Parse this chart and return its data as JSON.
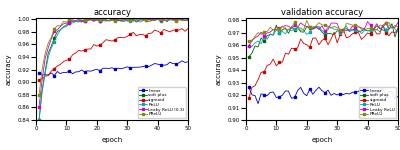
{
  "title1": "accuracy",
  "title2": "validation accuracy",
  "xlabel": "epoch",
  "ylabel": "accuracy",
  "epochs": 50,
  "legend1": [
    "linear",
    "soft plus",
    "sigmoid",
    "ReLU",
    "Leaky ReLU (0.3)",
    "PReLU"
  ],
  "legend2": [
    "linear",
    "soft plus",
    "sigmoid",
    "ReLU",
    "Leaky ReLU",
    "PReLU"
  ],
  "colors": [
    "#0000cc",
    "#006600",
    "#cc0000",
    "#00aaaa",
    "#cc00cc",
    "#888800"
  ],
  "ylim1": [
    0.84,
    1.002
  ],
  "ylim2": [
    0.9,
    0.982
  ],
  "yticks1": [
    0.84,
    0.86,
    0.88,
    0.9,
    0.92,
    0.94,
    0.96,
    0.98,
    1.0
  ],
  "yticks2": [
    0.9,
    0.91,
    0.92,
    0.93,
    0.94,
    0.95,
    0.96,
    0.97,
    0.98
  ]
}
